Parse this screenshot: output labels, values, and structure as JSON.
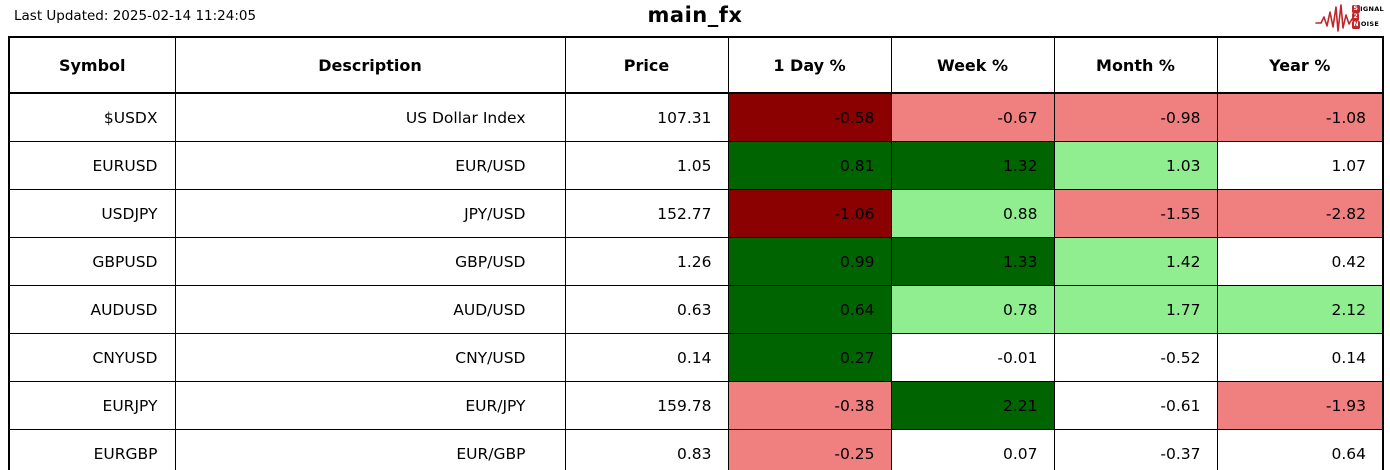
{
  "header": {
    "last_updated": "Last Updated: 2025-02-14 11:24:05",
    "title": "main_fx",
    "logo": {
      "name": "signal-2-noise-logo",
      "color": "#C0272D",
      "lines": [
        {
          "boxed": "S",
          "rest": "IGNAL"
        },
        {
          "boxed": "2",
          "rest": ""
        },
        {
          "boxed": "N",
          "rest": "OISE"
        }
      ]
    }
  },
  "chart_data": {
    "type": "table",
    "title": "main_fx",
    "columns": [
      "Symbol",
      "Description",
      "Price",
      "1 Day %",
      "Week %",
      "Month %",
      "Year %"
    ],
    "color_legend": {
      "darkred": "#8B0000",
      "lightred": "#F08080",
      "darkgreen": "#006400",
      "lightgreen": "#90EE90",
      "white": "#FFFFFF"
    },
    "rows": [
      {
        "symbol": "$USDX",
        "description": "US Dollar Index",
        "price": "107.31",
        "changes": [
          {
            "value": "-0.58",
            "bg": "darkred"
          },
          {
            "value": "-0.67",
            "bg": "lightred"
          },
          {
            "value": "-0.98",
            "bg": "lightred"
          },
          {
            "value": "-1.08",
            "bg": "lightred"
          }
        ]
      },
      {
        "symbol": "EURUSD",
        "description": "EUR/USD",
        "price": "1.05",
        "changes": [
          {
            "value": "0.81",
            "bg": "darkgreen"
          },
          {
            "value": "1.32",
            "bg": "darkgreen"
          },
          {
            "value": "1.03",
            "bg": "lightgreen"
          },
          {
            "value": "1.07",
            "bg": "white"
          }
        ]
      },
      {
        "symbol": "USDJPY",
        "description": "JPY/USD",
        "price": "152.77",
        "changes": [
          {
            "value": "-1.06",
            "bg": "darkred"
          },
          {
            "value": "0.88",
            "bg": "lightgreen"
          },
          {
            "value": "-1.55",
            "bg": "lightred"
          },
          {
            "value": "-2.82",
            "bg": "lightred"
          }
        ]
      },
      {
        "symbol": "GBPUSD",
        "description": "GBP/USD",
        "price": "1.26",
        "changes": [
          {
            "value": "0.99",
            "bg": "darkgreen"
          },
          {
            "value": "1.33",
            "bg": "darkgreen"
          },
          {
            "value": "1.42",
            "bg": "lightgreen"
          },
          {
            "value": "0.42",
            "bg": "white"
          }
        ]
      },
      {
        "symbol": "AUDUSD",
        "description": "AUD/USD",
        "price": "0.63",
        "changes": [
          {
            "value": "0.64",
            "bg": "darkgreen"
          },
          {
            "value": "0.78",
            "bg": "lightgreen"
          },
          {
            "value": "1.77",
            "bg": "lightgreen"
          },
          {
            "value": "2.12",
            "bg": "lightgreen"
          }
        ]
      },
      {
        "symbol": "CNYUSD",
        "description": "CNY/USD",
        "price": "0.14",
        "changes": [
          {
            "value": "0.27",
            "bg": "darkgreen"
          },
          {
            "value": "-0.01",
            "bg": "white"
          },
          {
            "value": "-0.52",
            "bg": "white"
          },
          {
            "value": "0.14",
            "bg": "white"
          }
        ]
      },
      {
        "symbol": "EURJPY",
        "description": "EUR/JPY",
        "price": "159.78",
        "changes": [
          {
            "value": "-0.38",
            "bg": "lightred"
          },
          {
            "value": "2.21",
            "bg": "darkgreen"
          },
          {
            "value": "-0.61",
            "bg": "white"
          },
          {
            "value": "-1.93",
            "bg": "lightred"
          }
        ]
      },
      {
        "symbol": "EURGBP",
        "description": "EUR/GBP",
        "price": "0.83",
        "changes": [
          {
            "value": "-0.25",
            "bg": "lightred"
          },
          {
            "value": "0.07",
            "bg": "white"
          },
          {
            "value": "-0.37",
            "bg": "white"
          },
          {
            "value": "0.64",
            "bg": "white"
          }
        ]
      }
    ]
  }
}
